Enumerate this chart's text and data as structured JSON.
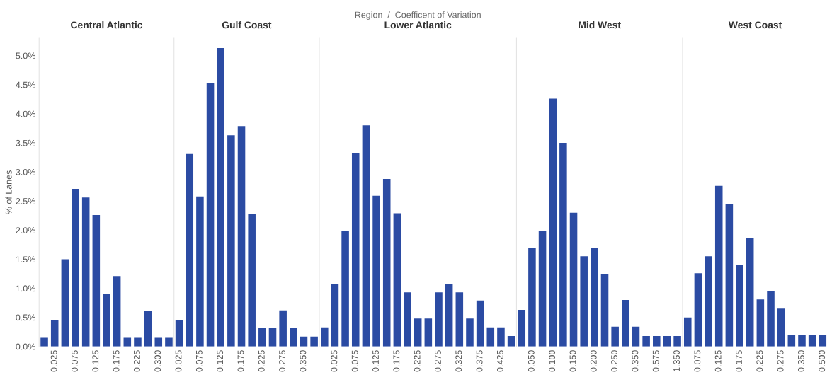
{
  "chart_data": [
    {
      "type": "bar",
      "title": "Central Atlantic",
      "ylabel": "% of Lanes",
      "color": "#2b4ba3",
      "ylim": [
        0,
        5.3
      ],
      "yticks": [
        {
          "value": 0,
          "label": "0.0%"
        },
        {
          "value": 0.5,
          "label": "0.5%"
        },
        {
          "value": 1,
          "label": "1.0%"
        },
        {
          "value": 1.5,
          "label": "1.5%"
        },
        {
          "value": 2,
          "label": "2.0%"
        },
        {
          "value": 2.5,
          "label": "2.5%"
        },
        {
          "value": 3,
          "label": "3.0%"
        },
        {
          "value": 3.5,
          "label": "3.5%"
        },
        {
          "value": 4,
          "label": "4.0%"
        },
        {
          "value": 4.5,
          "label": "4.5%"
        },
        {
          "value": 5,
          "label": "5.0%"
        }
      ],
      "categories": [
        null,
        "0.025",
        null,
        "0.075",
        null,
        "0.125",
        null,
        "0.175",
        null,
        "0.225",
        null,
        "0.300",
        null
      ],
      "values": [
        0.15,
        0.45,
        1.5,
        2.71,
        2.56,
        2.26,
        0.91,
        1.21,
        0.15,
        0.15,
        0.61,
        0.15,
        0.15
      ]
    },
    {
      "type": "bar",
      "title": "Gulf Coast",
      "color": "#2b4ba3",
      "ylim": [
        0,
        5.3
      ],
      "tick_labels": "x",
      "categories": [
        "0.025",
        null,
        "0.075",
        null,
        "0.125",
        null,
        "0.175",
        null,
        "0.225",
        null,
        "0.275",
        null,
        "0.350",
        null
      ],
      "values": [
        0.46,
        3.32,
        2.58,
        4.53,
        5.13,
        3.63,
        3.79,
        2.28,
        0.32,
        0.32,
        0.62,
        0.32,
        0.17,
        0.17
      ]
    },
    {
      "type": "bar",
      "title": "Lower Atlantic",
      "color": "#2b4ba3",
      "ylim": [
        0,
        5.3
      ],
      "tick_labels": "x",
      "annotations": [
        "Region  /  Coefficent of Variation"
      ],
      "categories": [
        null,
        "0.025",
        null,
        "0.075",
        null,
        "0.125",
        null,
        "0.175",
        null,
        "0.225",
        null,
        "0.275",
        null,
        "0.325",
        null,
        "0.375",
        null,
        "0.425",
        null
      ],
      "values": [
        0.33,
        1.08,
        1.98,
        3.33,
        3.8,
        2.59,
        2.88,
        2.29,
        0.93,
        0.48,
        0.48,
        0.93,
        1.08,
        0.93,
        0.48,
        0.79,
        0.33,
        0.33,
        0.18
      ]
    },
    {
      "type": "bar",
      "title": "Mid West",
      "color": "#2b4ba3",
      "ylim": [
        0,
        5.3
      ],
      "tick_labels": "x",
      "categories": [
        null,
        "0.050",
        null,
        "0.100",
        null,
        "0.150",
        null,
        "0.200",
        null,
        "0.250",
        null,
        "0.350",
        null,
        "0.575",
        null,
        "1.350"
      ],
      "values": [
        0.63,
        1.69,
        1.99,
        4.26,
        3.5,
        2.3,
        1.55,
        1.69,
        1.25,
        0.34,
        0.8,
        0.34,
        0.18,
        0.18,
        0.18,
        0.18
      ]
    },
    {
      "type": "bar",
      "title": "West Coast",
      "color": "#2b4ba3",
      "ylim": [
        0,
        5.3
      ],
      "tick_labels": "x",
      "categories": [
        null,
        "0.075",
        null,
        "0.125",
        null,
        "0.175",
        null,
        "0.225",
        null,
        "0.275",
        null,
        "0.350",
        null,
        "0.500"
      ],
      "values": [
        0.5,
        1.26,
        1.55,
        2.76,
        2.45,
        1.4,
        1.86,
        0.81,
        0.95,
        0.65,
        0.2,
        0.2,
        0.2,
        0.2
      ]
    }
  ]
}
